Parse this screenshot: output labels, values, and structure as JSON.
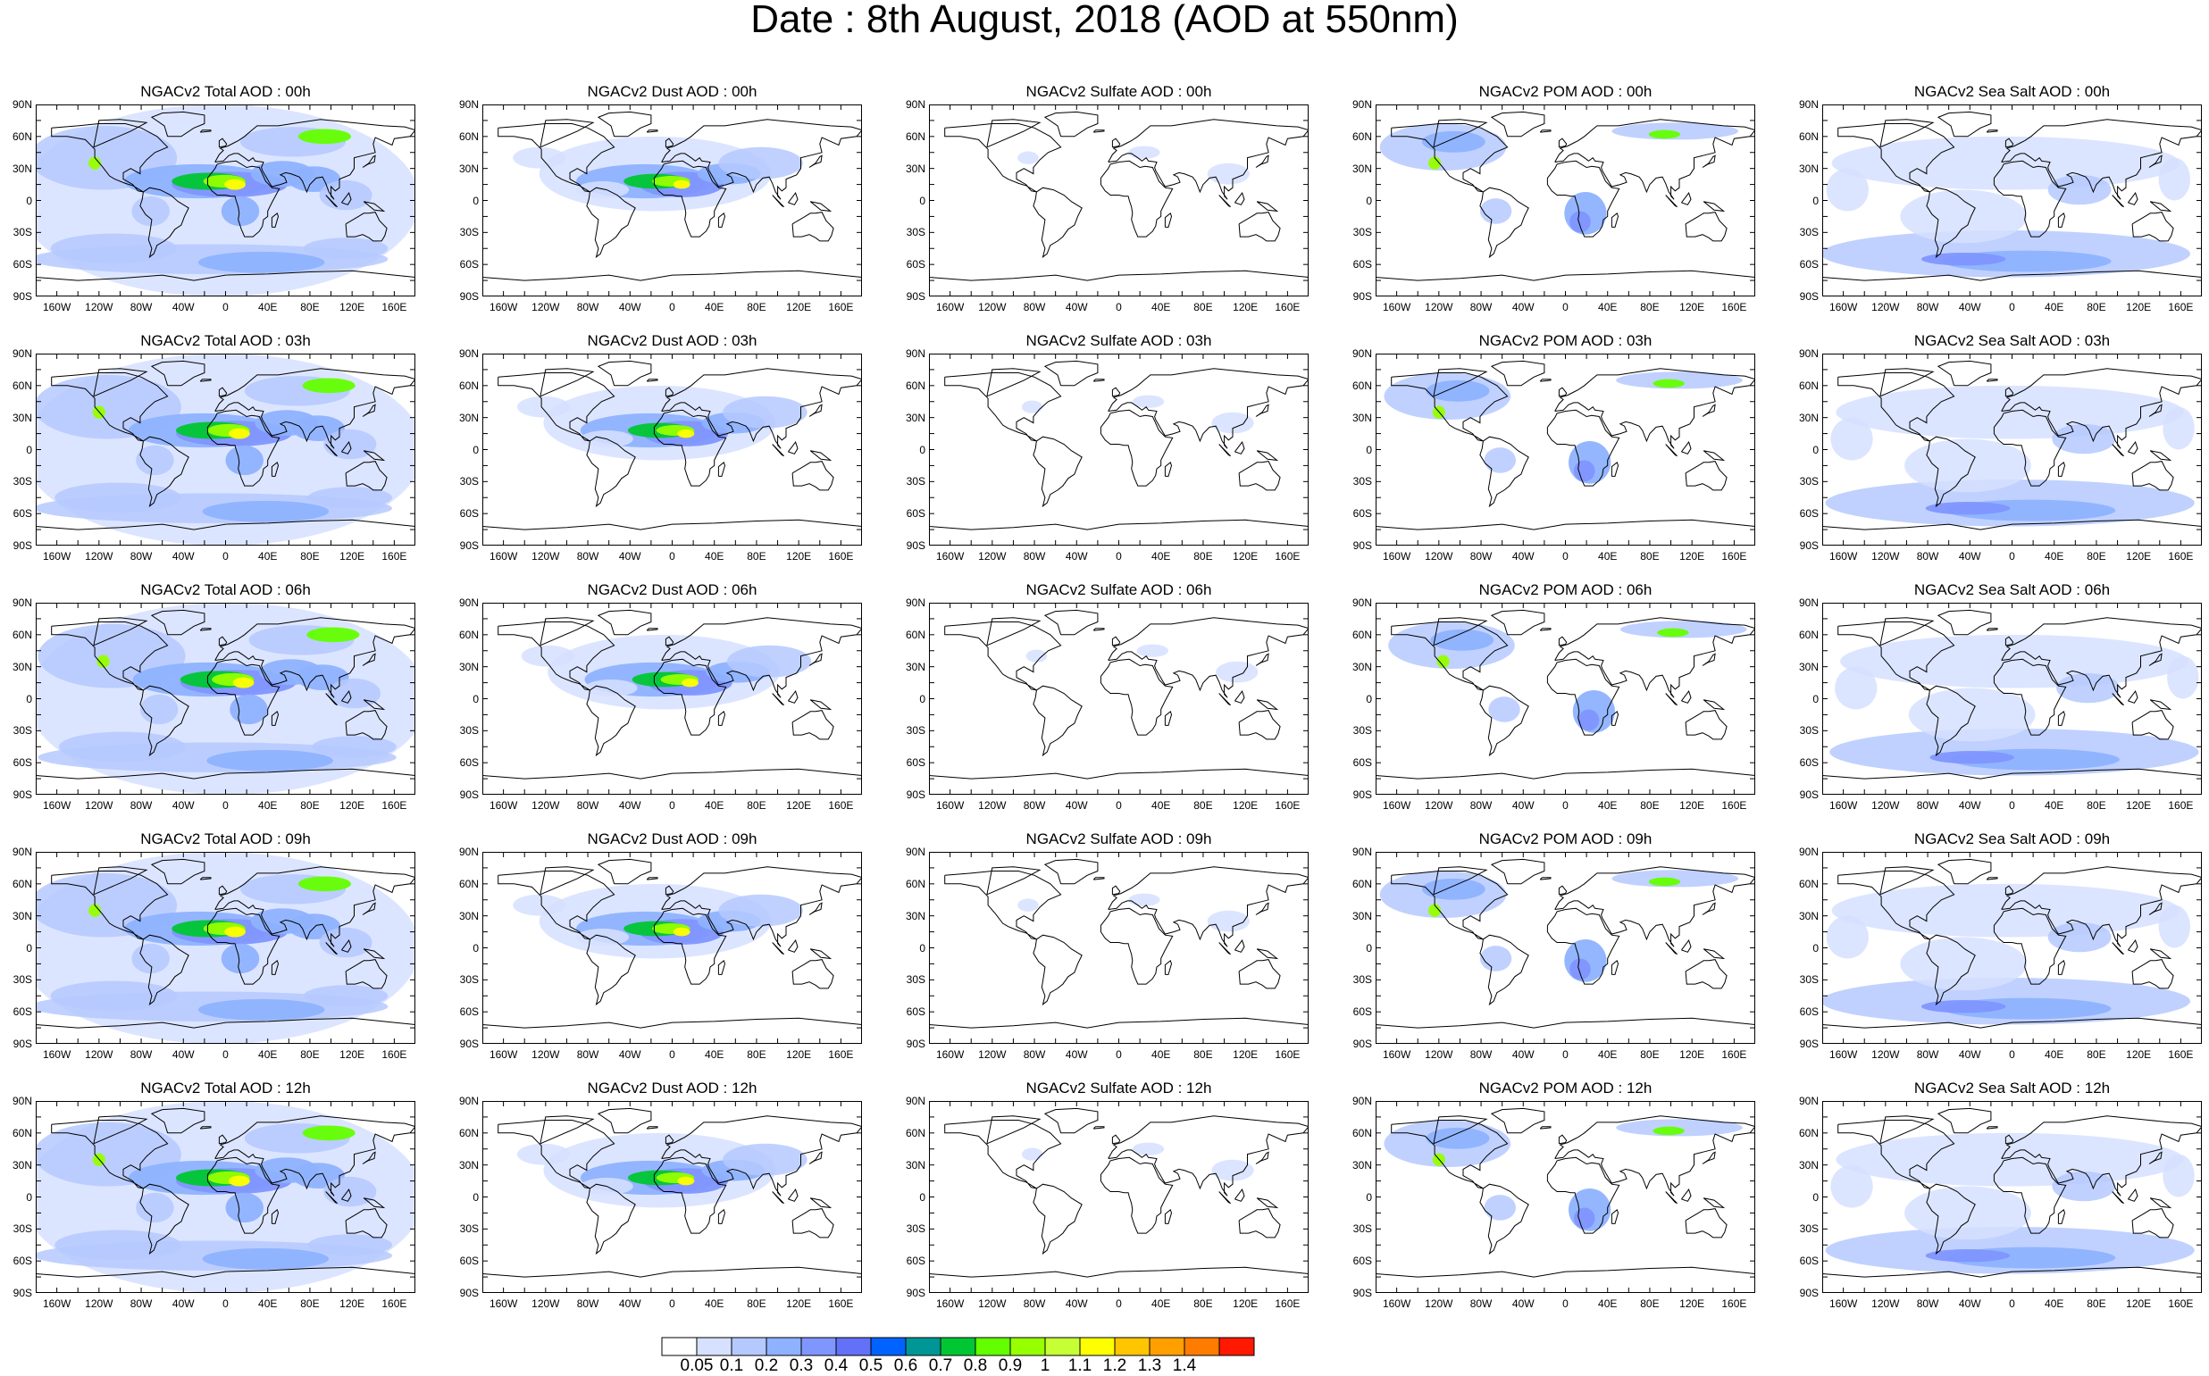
{
  "title": "Date : 8th August, 2018 (AOD at 550nm)",
  "lat_labels": [
    "90N",
    "60N",
    "30N",
    "0",
    "30S",
    "60S",
    "90S"
  ],
  "lon_labels": [
    "160W",
    "120W",
    "80W",
    "40W",
    "0",
    "40E",
    "80E",
    "120E",
    "160E"
  ],
  "columns": [
    {
      "species": "total",
      "titles": [
        "NGACv2 Total AOD : 00h",
        "NGACv2 Total AOD : 03h",
        "NGACv2 Total AOD : 06h",
        "NGACv2 Total AOD : 09h",
        "NGACv2 Total AOD : 12h"
      ]
    },
    {
      "species": "dust",
      "titles": [
        "NGACv2 Dust AOD : 00h",
        "NGACv2 Dust AOD : 03h",
        "NGACv2 Dust AOD : 06h",
        "NGACv2 Dust AOD : 09h",
        "NGACv2 Dust AOD : 12h"
      ]
    },
    {
      "species": "sulfate",
      "titles": [
        "NGACv2 Sulfate AOD : 00h",
        "NGACv2 Sulfate AOD : 03h",
        "NGACv2 Sulfate AOD : 06h",
        "NGACv2 Sulfate AOD : 09h",
        "NGACv2 Sulfate AOD : 12h"
      ]
    },
    {
      "species": "pom",
      "titles": [
        "NGACv2 POM AOD : 00h",
        "NGACv2 POM AOD : 03h",
        "NGACv2 POM AOD : 06h",
        "NGACv2 POM AOD : 09h",
        "NGACv2 POM  AOD : 12h"
      ]
    },
    {
      "species": "seasalt",
      "titles": [
        "NGACv2 Sea Salt AOD : 00h",
        "NGACv2 Sea Salt AOD : 03h",
        "NGACv2 Sea Salt AOD : 06h",
        "NGACv2 Sea Salt  AOD : 09h",
        "NGACv2 Sea Salt  AOD : 12h"
      ]
    }
  ],
  "colorbar": {
    "labels": [
      "0.05",
      "0.1",
      "0.2",
      "0.3",
      "0.4",
      "0.5",
      "0.6",
      "0.7",
      "0.8",
      "0.9",
      "1",
      "1.1",
      "1.2",
      "1.3",
      "1.4"
    ],
    "colors": [
      "#ffffff",
      "#d6e1ff",
      "#b5c9ff",
      "#8eb2ff",
      "#7f96ff",
      "#6370f8",
      "#0063ff",
      "#009696",
      "#00c633",
      "#63ff00",
      "#96ff00",
      "#c6ff33",
      "#ffff00",
      "#ffc600",
      "#ffa000",
      "#ff7c00",
      "#ff1900"
    ]
  }
}
